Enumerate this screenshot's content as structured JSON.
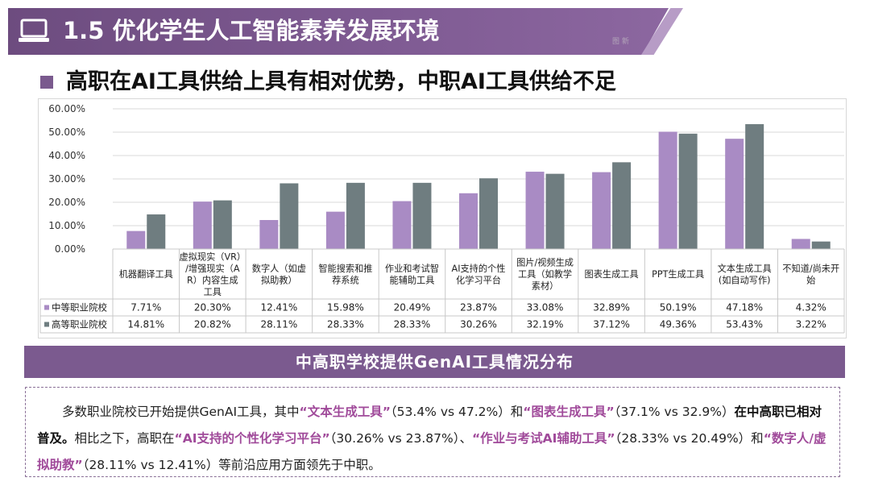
{
  "header": {
    "title": "1.5 优化学生人工智能素养发展环境",
    "subtitle": "高职在AI工具供给上具有相对优势，中职AI工具供给不足",
    "icon": "laptop-icon",
    "logo_text": "图 新"
  },
  "colors": {
    "banner": "#7e5a92",
    "series_1": "#a98bc4",
    "series_2": "#6f7d80"
  },
  "chart_data": {
    "type": "bar",
    "title": "中高职学校提供GenAI工具情况分布",
    "ylim": [
      0,
      60
    ],
    "yticks": [
      "0.00%",
      "10.00%",
      "20.00%",
      "30.00%",
      "40.00%",
      "50.00%",
      "60.00%"
    ],
    "grid": true,
    "categories": [
      [
        "机器翻译工具"
      ],
      [
        "虚拟现实（VR）",
        "/增强现实（A",
        "R）内容生成",
        "工具"
      ],
      [
        "数字人（如虚",
        "拟助教）"
      ],
      [
        "智能搜索和推",
        "荐系统"
      ],
      [
        "作业和考试智",
        "能辅助工具"
      ],
      [
        "AI支持的个性",
        "化学习平台"
      ],
      [
        "图片/视频生成",
        "工具（如教学",
        "素材）"
      ],
      [
        "图表生成工具"
      ],
      [
        "PPT生成工具"
      ],
      [
        "文本生成工具",
        "(如自动写作)"
      ],
      [
        "不知道/尚未开",
        "始"
      ]
    ],
    "series": [
      {
        "name": "中等职业院校",
        "values": [
          7.71,
          20.3,
          12.41,
          15.98,
          20.49,
          23.87,
          33.08,
          32.89,
          50.19,
          47.18,
          4.32
        ],
        "labels": [
          "7.71%",
          "20.30%",
          "12.41%",
          "15.98%",
          "20.49%",
          "23.87%",
          "33.08%",
          "32.89%",
          "50.19%",
          "47.18%",
          "4.32%"
        ]
      },
      {
        "name": "高等职业院校",
        "values": [
          14.81,
          20.82,
          28.11,
          28.33,
          28.33,
          30.26,
          32.19,
          37.12,
          49.36,
          53.43,
          3.22
        ],
        "labels": [
          "14.81%",
          "20.82%",
          "28.11%",
          "28.33%",
          "28.33%",
          "30.26%",
          "32.19%",
          "37.12%",
          "49.36%",
          "53.43%",
          "3.22%"
        ]
      }
    ]
  },
  "summary": {
    "p1": "多数职业院校已开始提供GenAI工具，其中",
    "h1": "“文本生成工具”",
    "p2": "（53.4% vs 47.2%）和",
    "h2": "“图表生成工具”",
    "p3": "（37.1% vs 32.9%）",
    "b1": "在中高职已相对普及。",
    "p4": "相比之下，高职在",
    "h3": "“AI支持的个性化学习平台”",
    "p5": "（30.26% vs 23.87%）、",
    "h4": "“作业与考试AI辅助工具”",
    "p6": "（28.33% vs 20.49%）和",
    "h5": "“数字人/虚拟助教”",
    "p7": "（28.11% vs 12.41%）等前沿应用方面领先于中职。"
  }
}
